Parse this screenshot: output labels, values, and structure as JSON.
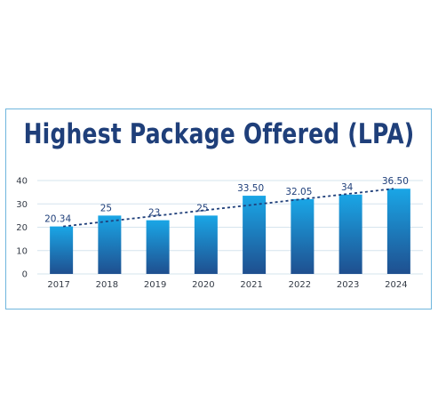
{
  "chart_data": {
    "type": "bar",
    "title": "Highest Package Offered (LPA)",
    "categories": [
      "2017",
      "2018",
      "2019",
      "2020",
      "2021",
      "2022",
      "2023",
      "2024"
    ],
    "values": [
      20.34,
      25,
      23,
      25,
      33.5,
      32.05,
      34,
      36.5
    ],
    "data_labels": [
      "20.34",
      "25",
      "23",
      "25",
      "33.50",
      "32.05",
      "34",
      "36.50"
    ],
    "ylim": [
      0,
      40
    ],
    "yticks": [
      "0",
      "10",
      "20",
      "30",
      "40"
    ],
    "grid": true,
    "trendline": {
      "style": "dashed",
      "from": "2017",
      "to": "2024",
      "start_value": 20.34,
      "end_value": 36.5
    },
    "colors": {
      "bar_top": "#1aa6e6",
      "bar_bottom": "#1f4f8f",
      "title": "#1f3f7a",
      "trend": "#1f3f7a",
      "grid": "#d6e4ee",
      "frame": "#6fb6dd"
    }
  }
}
